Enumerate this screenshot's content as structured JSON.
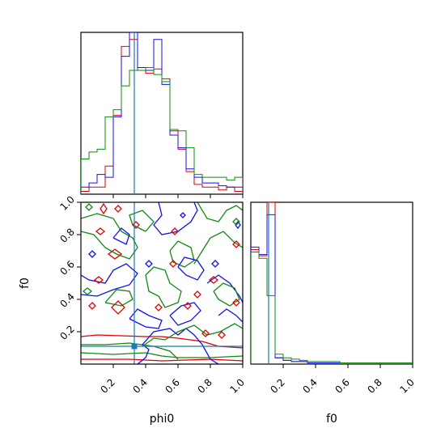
{
  "chart_data": {
    "type": "corner",
    "variables": [
      {
        "name": "phi0",
        "range": [
          0,
          1
        ]
      },
      {
        "name": "f0",
        "range": [
          0,
          1
        ]
      }
    ],
    "truths": {
      "phi0": 0.33,
      "f0": 0.11
    },
    "truth_color": "#1f77b4",
    "colors": {
      "red": "#e00000",
      "blue": "#1010ee",
      "green": "#118811"
    },
    "xlabels": [
      "phi0",
      "f0"
    ],
    "ylabel_2d": "f0",
    "ticks": {
      "phi0": [
        "0.2",
        "0.4",
        "0.6",
        "0.8",
        "1.0"
      ],
      "f0": [
        "0.2",
        "0.4",
        "0.6",
        "0.8",
        "1.0"
      ]
    },
    "hist_phi0": {
      "bin_edges": [
        0,
        0.05,
        0.1,
        0.15,
        0.2,
        0.25,
        0.3,
        0.35,
        0.4,
        0.45,
        0.5,
        0.55,
        0.6,
        0.65,
        0.7,
        0.75,
        0.8,
        0.85,
        0.9,
        0.95,
        1.0
      ],
      "series": [
        {
          "color": "red",
          "values": [
            0.02,
            0.05,
            0.05,
            0.2,
            0.56,
            1.05,
            1.1,
            0.88,
            0.86,
            0.89,
            0.82,
            0.45,
            0.32,
            0.16,
            0.07,
            0.05,
            0.05,
            0.03,
            0.05,
            0.02
          ]
        },
        {
          "color": "blue",
          "values": [
            0.05,
            0.08,
            0.14,
            0.12,
            0.55,
            0.98,
            1.15,
            0.9,
            0.88,
            1.1,
            0.78,
            0.42,
            0.33,
            0.18,
            0.12,
            0.08,
            0.08,
            0.06,
            0.05,
            0.05
          ]
        },
        {
          "color": "green",
          "values": [
            0.25,
            0.3,
            0.32,
            0.55,
            0.6,
            0.77,
            0.88,
            0.88,
            0.9,
            0.85,
            0.8,
            0.46,
            0.45,
            0.33,
            0.14,
            0.12,
            0.12,
            0.12,
            0.1,
            0.12
          ]
        }
      ]
    },
    "hist_f0": {
      "bin_edges": [
        0,
        0.05,
        0.1,
        0.15,
        0.2,
        0.25,
        0.3,
        0.35,
        0.4,
        0.45,
        0.5,
        0.55,
        0.6,
        0.65,
        0.7,
        0.75,
        0.8,
        0.85,
        0.9,
        0.95,
        1.0
      ],
      "series": [
        {
          "color": "red",
          "values": [
            0.92,
            0.87,
            1.3,
            0.05,
            0.03,
            0.02,
            0.02,
            0.01,
            0.01,
            0.01,
            0.01,
            0.01,
            0.01,
            0.01,
            0.01,
            0.01,
            0.01,
            0.01,
            0.01,
            0.01
          ]
        },
        {
          "color": "blue",
          "values": [
            0.94,
            0.88,
            1.2,
            0.05,
            0.03,
            0.02,
            0.02,
            0.01,
            0.01,
            0.01,
            0.01,
            0.01,
            0.01,
            0.01,
            0.01,
            0.01,
            0.01,
            0.01,
            0.01,
            0.01
          ]
        },
        {
          "color": "green",
          "values": [
            0.9,
            0.85,
            0.55,
            0.08,
            0.05,
            0.04,
            0.03,
            0.02,
            0.02,
            0.02,
            0.02,
            0.01,
            0.01,
            0.01,
            0.01,
            0.01,
            0.01,
            0.01,
            0.01,
            0.01
          ]
        }
      ]
    },
    "contours_2d": [
      {
        "color": "green",
        "points": [
          [
            0.0,
            0.07
          ],
          [
            0.2,
            0.06
          ],
          [
            0.4,
            0.07
          ],
          [
            0.5,
            0.05
          ],
          [
            0.6,
            0.04
          ],
          [
            0.8,
            0.04
          ],
          [
            1.0,
            0.05
          ]
        ]
      },
      {
        "color": "red",
        "points": [
          [
            0.0,
            0.17
          ],
          [
            0.1,
            0.18
          ],
          [
            0.25,
            0.175
          ],
          [
            0.4,
            0.17
          ],
          [
            0.5,
            0.17
          ],
          [
            0.6,
            0.16
          ],
          [
            0.75,
            0.14
          ],
          [
            0.85,
            0.11
          ],
          [
            1.0,
            0.1
          ]
        ]
      },
      {
        "color": "red",
        "points": [
          [
            0.0,
            0.03
          ],
          [
            0.3,
            0.03
          ],
          [
            0.5,
            0.02
          ],
          [
            0.8,
            0.03
          ],
          [
            1.0,
            0.02
          ]
        ]
      },
      {
        "color": "green",
        "points": [
          [
            0.0,
            0.12
          ],
          [
            0.15,
            0.12
          ],
          [
            0.3,
            0.13
          ],
          [
            0.45,
            0.11
          ],
          [
            0.55,
            0.08
          ],
          [
            0.6,
            0.03
          ]
        ]
      },
      {
        "color": "blue",
        "points": [
          [
            0.35,
            0.0
          ],
          [
            0.4,
            0.04
          ],
          [
            0.42,
            0.09
          ],
          [
            0.38,
            0.12
          ],
          [
            0.45,
            0.2
          ],
          [
            0.55,
            0.22
          ],
          [
            0.6,
            0.18
          ],
          [
            0.65,
            0.22
          ],
          [
            0.7,
            0.18
          ],
          [
            0.75,
            0.12
          ],
          [
            0.8,
            0.03
          ],
          [
            0.85,
            0.0
          ]
        ]
      },
      {
        "color": "green",
        "points": [
          [
            0.38,
            0.11
          ],
          [
            0.45,
            0.16
          ],
          [
            0.52,
            0.15
          ],
          [
            0.6,
            0.2
          ],
          [
            0.7,
            0.24
          ],
          [
            0.78,
            0.18
          ],
          [
            0.86,
            0.2
          ],
          [
            0.95,
            0.25
          ],
          [
            1.0,
            0.22
          ]
        ]
      },
      {
        "color": "blue",
        "points": [
          [
            0.0,
            0.43
          ],
          [
            0.1,
            0.42
          ],
          [
            0.2,
            0.46
          ],
          [
            0.3,
            0.49
          ],
          [
            0.35,
            0.56
          ],
          [
            0.28,
            0.62
          ],
          [
            0.2,
            0.58
          ],
          [
            0.15,
            0.5
          ],
          [
            0.05,
            0.52
          ],
          [
            0.0,
            0.55
          ]
        ]
      },
      {
        "color": "green",
        "points": [
          [
            0.0,
            0.82
          ],
          [
            0.08,
            0.8
          ],
          [
            0.15,
            0.72
          ],
          [
            0.22,
            0.68
          ],
          [
            0.3,
            0.65
          ],
          [
            0.35,
            0.72
          ],
          [
            0.32,
            0.78
          ],
          [
            0.25,
            0.82
          ],
          [
            0.2,
            0.9
          ],
          [
            0.1,
            0.93
          ],
          [
            0.0,
            0.9
          ]
        ]
      },
      {
        "color": "green",
        "points": [
          [
            0.4,
            0.55
          ],
          [
            0.45,
            0.6
          ],
          [
            0.52,
            0.58
          ],
          [
            0.55,
            0.5
          ],
          [
            0.62,
            0.45
          ],
          [
            0.6,
            0.38
          ],
          [
            0.52,
            0.35
          ],
          [
            0.48,
            0.42
          ],
          [
            0.42,
            0.45
          ],
          [
            0.4,
            0.55
          ]
        ]
      },
      {
        "color": "blue",
        "points": [
          [
            0.48,
            1.0
          ],
          [
            0.5,
            0.92
          ],
          [
            0.45,
            0.86
          ],
          [
            0.5,
            0.8
          ],
          [
            0.6,
            0.82
          ],
          [
            0.68,
            0.88
          ],
          [
            0.72,
            0.95
          ],
          [
            0.7,
            1.0
          ]
        ]
      },
      {
        "color": "green",
        "points": [
          [
            0.7,
            0.62
          ],
          [
            0.75,
            0.7
          ],
          [
            0.8,
            0.78
          ],
          [
            0.88,
            0.82
          ],
          [
            0.95,
            0.75
          ],
          [
            1.0,
            0.72
          ]
        ]
      },
      {
        "color": "green",
        "points": [
          [
            0.72,
            1.0
          ],
          [
            0.78,
            0.9
          ],
          [
            0.85,
            0.88
          ],
          [
            0.9,
            0.95
          ],
          [
            0.96,
            0.98
          ],
          [
            1.0,
            0.95
          ]
        ]
      },
      {
        "color": "blue",
        "points": [
          [
            0.78,
            0.5
          ],
          [
            0.85,
            0.55
          ],
          [
            0.92,
            0.5
          ],
          [
            0.98,
            0.42
          ],
          [
            1.0,
            0.38
          ]
        ]
      },
      {
        "color": "blue",
        "points": [
          [
            0.55,
            0.3
          ],
          [
            0.6,
            0.24
          ],
          [
            0.68,
            0.27
          ],
          [
            0.74,
            0.33
          ],
          [
            0.7,
            0.38
          ],
          [
            0.62,
            0.36
          ],
          [
            0.55,
            0.3
          ]
        ]
      },
      {
        "color": "green",
        "points": [
          [
            0.15,
            0.38
          ],
          [
            0.25,
            0.36
          ],
          [
            0.32,
            0.4
          ],
          [
            0.3,
            0.45
          ],
          [
            0.22,
            0.46
          ],
          [
            0.15,
            0.38
          ]
        ]
      },
      {
        "color": "blue",
        "points": [
          [
            0.3,
            0.28
          ],
          [
            0.35,
            0.34
          ],
          [
            0.42,
            0.3
          ],
          [
            0.5,
            0.27
          ],
          [
            0.48,
            0.22
          ],
          [
            0.4,
            0.23
          ],
          [
            0.3,
            0.28
          ]
        ]
      },
      {
        "color": "green",
        "points": [
          [
            0.55,
            0.7
          ],
          [
            0.6,
            0.76
          ],
          [
            0.68,
            0.72
          ],
          [
            0.7,
            0.64
          ],
          [
            0.64,
            0.6
          ],
          [
            0.57,
            0.63
          ],
          [
            0.55,
            0.7
          ]
        ]
      },
      {
        "color": "blue",
        "points": [
          [
            0.85,
            0.3
          ],
          [
            0.9,
            0.34
          ],
          [
            0.96,
            0.3
          ],
          [
            1.0,
            0.26
          ]
        ]
      },
      {
        "color": "green",
        "points": [
          [
            0.82,
            0.45
          ],
          [
            0.88,
            0.5
          ],
          [
            0.95,
            0.47
          ],
          [
            0.98,
            0.4
          ],
          [
            0.92,
            0.36
          ],
          [
            0.85,
            0.4
          ],
          [
            0.82,
            0.45
          ]
        ]
      },
      {
        "color": "blue",
        "points": [
          [
            0.6,
            0.6
          ],
          [
            0.64,
            0.66
          ],
          [
            0.72,
            0.64
          ],
          [
            0.76,
            0.58
          ],
          [
            0.72,
            0.52
          ],
          [
            0.65,
            0.55
          ],
          [
            0.6,
            0.6
          ]
        ]
      },
      {
        "color": "green",
        "points": [
          [
            0.4,
            0.82
          ],
          [
            0.45,
            0.88
          ],
          [
            0.38,
            0.95
          ],
          [
            0.3,
            0.92
          ],
          [
            0.32,
            0.86
          ],
          [
            0.4,
            0.82
          ]
        ]
      },
      {
        "color": "blue",
        "points": [
          [
            0.2,
            0.78
          ],
          [
            0.25,
            0.84
          ],
          [
            0.3,
            0.8
          ],
          [
            0.28,
            0.74
          ],
          [
            0.2,
            0.78
          ]
        ]
      }
    ],
    "diamonds_2d": [
      {
        "color": "red",
        "center": [
          0.14,
          0.96
        ],
        "r": [
          0.02,
          0.03
        ]
      },
      {
        "color": "red",
        "center": [
          0.23,
          0.96
        ],
        "r": [
          0.02,
          0.02
        ]
      },
      {
        "color": "red",
        "center": [
          0.12,
          0.82
        ],
        "r": [
          0.025,
          0.02
        ]
      },
      {
        "color": "red",
        "center": [
          0.34,
          0.86
        ],
        "r": [
          0.02,
          0.02
        ]
      },
      {
        "color": "red",
        "center": [
          0.58,
          0.82
        ],
        "r": [
          0.02,
          0.02
        ]
      },
      {
        "color": "red",
        "center": [
          0.21,
          0.68
        ],
        "r": [
          0.04,
          0.03
        ]
      },
      {
        "color": "red",
        "center": [
          0.57,
          0.62
        ],
        "r": [
          0.02,
          0.02
        ]
      },
      {
        "color": "red",
        "center": [
          0.11,
          0.52
        ],
        "r": [
          0.025,
          0.02
        ]
      },
      {
        "color": "red",
        "center": [
          0.82,
          0.52
        ],
        "r": [
          0.025,
          0.02
        ]
      },
      {
        "color": "red",
        "center": [
          0.72,
          0.43
        ],
        "r": [
          0.02,
          0.02
        ]
      },
      {
        "color": "red",
        "center": [
          0.23,
          0.35
        ],
        "r": [
          0.04,
          0.04
        ]
      },
      {
        "color": "red",
        "center": [
          0.07,
          0.36
        ],
        "r": [
          0.02,
          0.02
        ]
      },
      {
        "color": "red",
        "center": [
          0.48,
          0.35
        ],
        "r": [
          0.02,
          0.02
        ]
      },
      {
        "color": "red",
        "center": [
          0.66,
          0.36
        ],
        "r": [
          0.02,
          0.02
        ]
      },
      {
        "color": "red",
        "center": [
          0.96,
          0.38
        ],
        "r": [
          0.02,
          0.02
        ]
      },
      {
        "color": "red",
        "center": [
          0.77,
          0.19
        ],
        "r": [
          0.02,
          0.02
        ]
      },
      {
        "color": "red",
        "center": [
          0.87,
          0.18
        ],
        "r": [
          0.02,
          0.02
        ]
      },
      {
        "color": "red",
        "center": [
          0.96,
          0.74
        ],
        "r": [
          0.02,
          0.02
        ]
      },
      {
        "color": "blue",
        "center": [
          0.63,
          0.92
        ],
        "r": [
          0.015,
          0.015
        ]
      },
      {
        "color": "blue",
        "center": [
          0.42,
          0.62
        ],
        "r": [
          0.02,
          0.02
        ]
      },
      {
        "color": "blue",
        "center": [
          0.83,
          0.62
        ],
        "r": [
          0.02,
          0.02
        ]
      },
      {
        "color": "blue",
        "center": [
          0.07,
          0.68
        ],
        "r": [
          0.02,
          0.02
        ]
      },
      {
        "color": "blue",
        "center": [
          0.97,
          0.86
        ],
        "r": [
          0.015,
          0.02
        ]
      },
      {
        "color": "green",
        "center": [
          0.05,
          0.97
        ],
        "r": [
          0.02,
          0.02
        ]
      },
      {
        "color": "green",
        "center": [
          0.04,
          0.45
        ],
        "r": [
          0.025,
          0.02
        ]
      },
      {
        "color": "green",
        "center": [
          0.96,
          0.88
        ],
        "r": [
          0.02,
          0.02
        ]
      }
    ]
  }
}
